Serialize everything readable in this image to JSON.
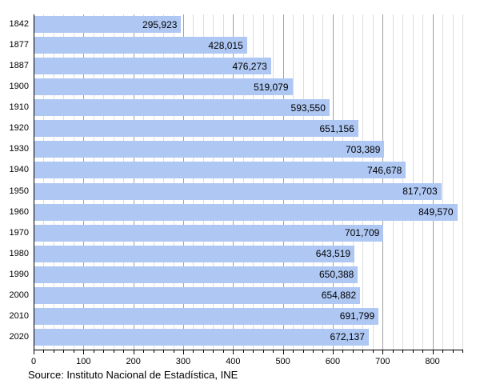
{
  "chart_data": {
    "type": "bar",
    "orientation": "horizontal",
    "title": "",
    "xlabel": "",
    "ylabel": "",
    "categories": [
      "1842",
      "1877",
      "1887",
      "1900",
      "1910",
      "1920",
      "1930",
      "1940",
      "1950",
      "1960",
      "1970",
      "1980",
      "1990",
      "2000",
      "2010",
      "2020"
    ],
    "values": [
      295923,
      428015,
      476273,
      519079,
      593550,
      651156,
      703389,
      746678,
      817703,
      849570,
      701709,
      643519,
      650388,
      654882,
      691799,
      672137
    ],
    "value_labels": [
      "295,923",
      "428,015",
      "476,273",
      "519,079",
      "593,550",
      "651,156",
      "703,389",
      "746,678",
      "817,703",
      "849,570",
      "701,709",
      "643,519",
      "650,388",
      "654,882",
      "691,799",
      "672,137"
    ],
    "xlim": [
      0,
      860000
    ],
    "x_ticks": [
      0,
      100,
      200,
      300,
      400,
      500,
      600,
      700,
      800
    ],
    "x_tick_scale": 1000,
    "minor_step": 20000,
    "major_step": 100000,
    "grid": true,
    "legend_position": "none",
    "bar_color": "#aec7f3",
    "minor_grid_color": "#dcdcdc",
    "major_grid_color": "#a0a0a0",
    "axis_color": "#000000"
  },
  "source_note": "Source: Instituto Nacional de Estadística, INE"
}
